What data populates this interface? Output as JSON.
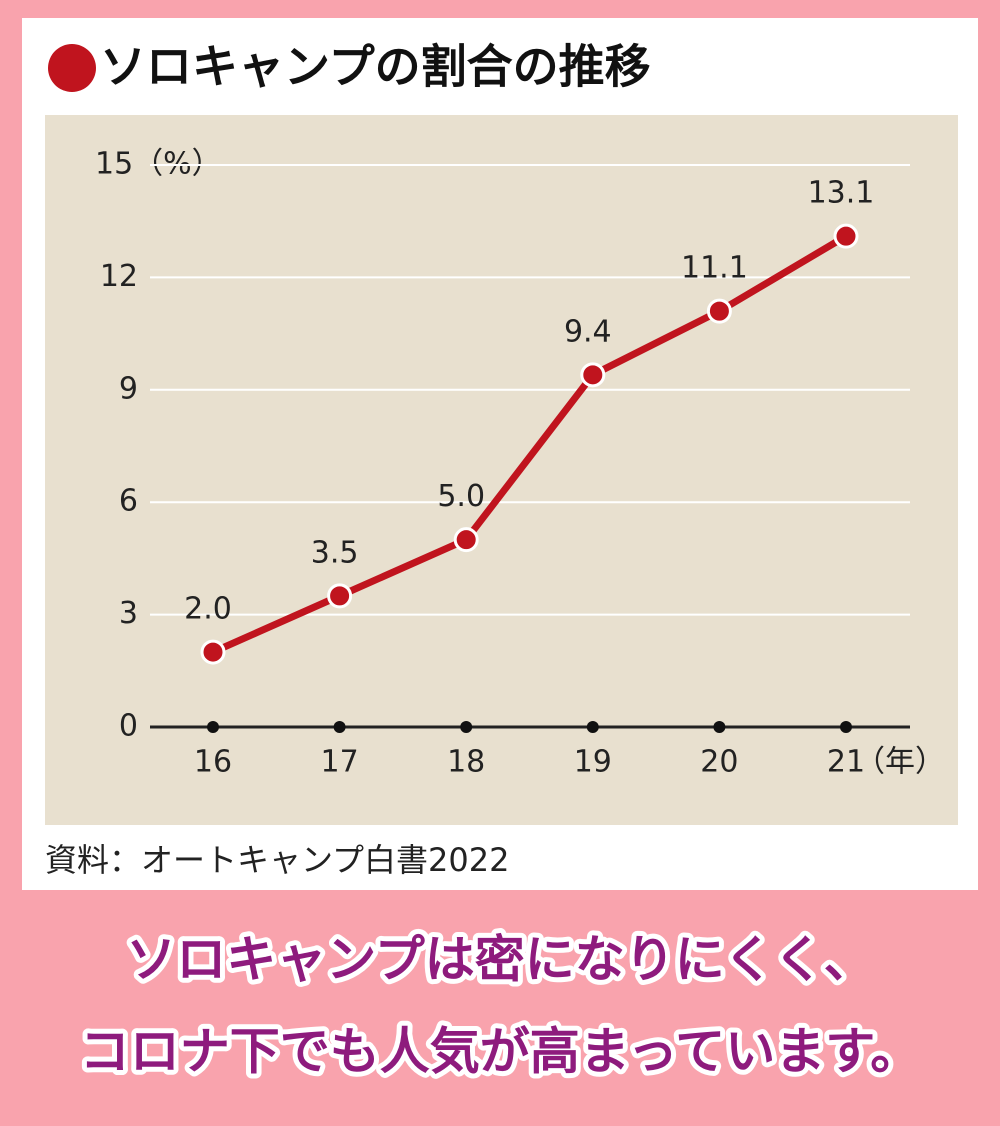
{
  "chart_data": {
    "type": "line",
    "title": "ソロキャンプの割合の推移",
    "categories": [
      "16",
      "17",
      "18",
      "19",
      "20",
      "21"
    ],
    "x_unit": "（年）",
    "values": [
      2.0,
      3.5,
      5.0,
      9.4,
      11.1,
      13.1
    ],
    "value_labels": [
      "2.0",
      "3.5",
      "5.0",
      "9.4",
      "11.1",
      "13.1"
    ],
    "color": "#c0141e",
    "ylim": [
      0,
      15
    ],
    "yticks": [
      0,
      3,
      6,
      9,
      12,
      {
        "value": 15,
        "label": "15（%）"
      }
    ],
    "grid": true,
    "source": "資料：オートキャンプ白書2022"
  },
  "caption": [
    "ソロキャンプは密になりにくく、",
    "コロナ下でも人気が高まっています。"
  ]
}
